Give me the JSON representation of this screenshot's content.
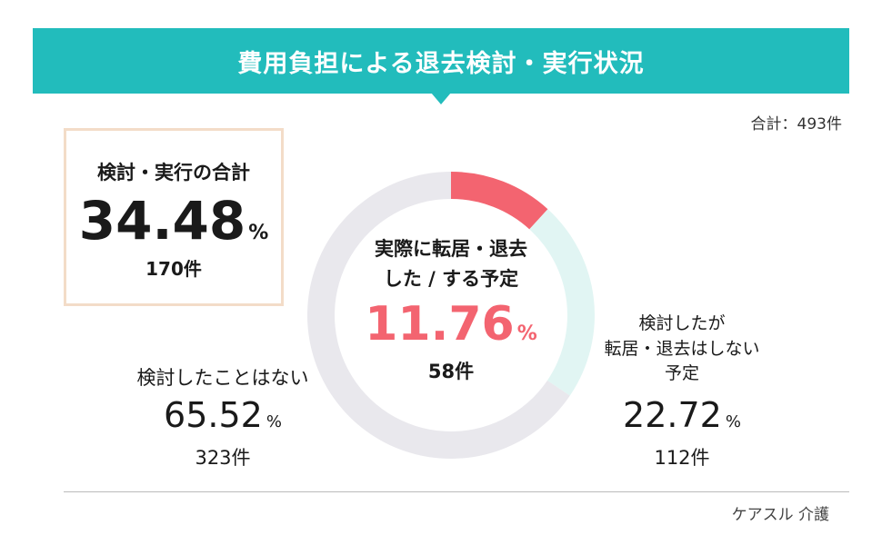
{
  "header": {
    "title": "費用負担による退去検討・実行状況",
    "total": "合計：493件"
  },
  "summary": {
    "label": "検討・実行の合計",
    "percent": "34.48",
    "unit": "%",
    "count": "170件"
  },
  "chart_data": {
    "type": "pie",
    "subtype": "donut",
    "total": 493,
    "series": [
      {
        "name": "実際に転居・退去した / する予定",
        "value": 58,
        "percent": 11.76,
        "color": "#f36470"
      },
      {
        "name": "検討したが転居・退去はしない予定",
        "value": 112,
        "percent": 22.72,
        "color": "#e1f5f3"
      },
      {
        "name": "検討したことはない",
        "value": 323,
        "percent": 65.52,
        "color": "#e9e8ed"
      }
    ]
  },
  "center": {
    "line1": "実際に転居・退去",
    "line2": "した / する予定",
    "percent": "11.76",
    "unit": "%",
    "count": "58件"
  },
  "left": {
    "label": "検討したことはない",
    "percent": "65.52",
    "unit": "%",
    "count": "323件"
  },
  "right": {
    "line1": "検討したが",
    "line2": "転居・退去はしない",
    "line3": "予定",
    "percent": "22.72",
    "unit": "%",
    "count": "112件"
  },
  "footer": {
    "source": "ケアスル 介護"
  }
}
